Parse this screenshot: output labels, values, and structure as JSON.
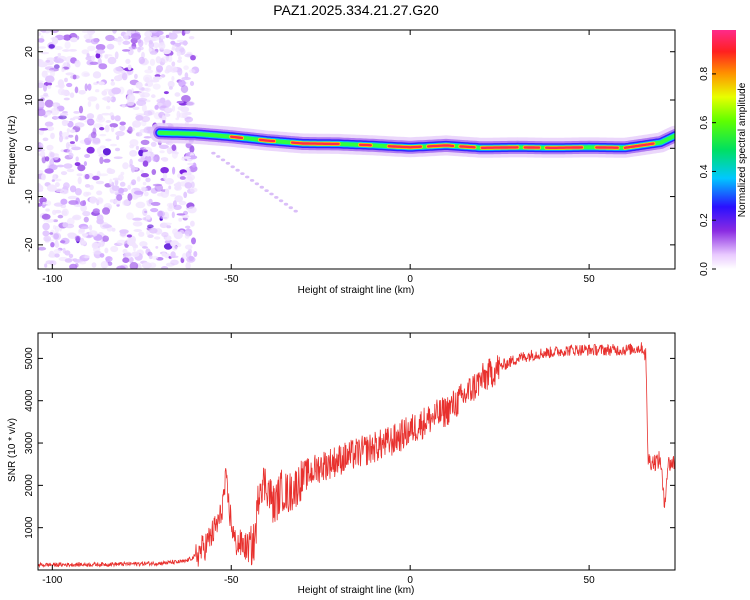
{
  "title": "PAZ1.2025.334.21.27.G20",
  "colors": {
    "snr_line": "#e8312e",
    "ridge_core": "#ff2a4a",
    "noise": "#8a2be2",
    "axis": "#000000"
  },
  "chart_data": [
    {
      "type": "heatmap",
      "name": "spectrogram",
      "xlabel": "Height of straight line (km)",
      "ylabel": "Frequency (Hz)",
      "xlim": [
        -104,
        74
      ],
      "ylim": [
        -25,
        24.5
      ],
      "xticks": [
        "-100",
        "-50",
        "0",
        "50"
      ],
      "xtick_values": [
        -100,
        -50,
        0,
        50
      ],
      "yticks": [
        "-20",
        "-10",
        "0",
        "10",
        "20"
      ],
      "ytick_values": [
        -20,
        -10,
        0,
        10,
        20
      ],
      "noise_region_km": [
        -104,
        -60
      ],
      "ridge": {
        "description": "frequency ridge of the occultation signal",
        "x": [
          -70,
          -60,
          -50,
          -40,
          -30,
          -20,
          -10,
          0,
          10,
          20,
          30,
          40,
          50,
          60,
          70,
          74
        ],
        "freq_hz": [
          3.2,
          3.0,
          2.4,
          1.6,
          1.0,
          0.9,
          0.6,
          0.2,
          0.6,
          0.1,
          0.2,
          0.1,
          0.2,
          0.1,
          1.2,
          2.6
        ]
      },
      "faint_tail": {
        "x": [
          -55,
          -32
        ],
        "freq_hz": [
          -1,
          -13
        ]
      },
      "colorbar": {
        "label": "Normalized spectral amplitude",
        "ticks": [
          "0.0",
          "0.2",
          "0.4",
          "0.6",
          "0.8"
        ],
        "tick_values": [
          0.0,
          0.2,
          0.4,
          0.6,
          0.8
        ],
        "range": [
          0,
          0.98
        ]
      }
    },
    {
      "type": "line",
      "name": "snr",
      "xlabel": "Height of straight line (km)",
      "ylabel": "SNR (10 * v/v)",
      "xlim": [
        -104,
        74
      ],
      "ylim": [
        0,
        5600
      ],
      "xticks": [
        "-100",
        "-50",
        "0",
        "50"
      ],
      "xtick_values": [
        -100,
        -50,
        0,
        50
      ],
      "yticks": [
        "1000",
        "2000",
        "3000",
        "4000",
        "5000"
      ],
      "ytick_values": [
        1000,
        2000,
        3000,
        4000,
        5000
      ],
      "series": [
        {
          "name": "SNR",
          "x": [
            -104,
            -90,
            -80,
            -70,
            -63,
            -60,
            -57,
            -55,
            -53,
            -51.5,
            -50.5,
            -49,
            -47,
            -45,
            -43.5,
            -42,
            -40,
            -38,
            -36,
            -34,
            -32,
            -30,
            -25,
            -20,
            -15,
            -10,
            -5,
            0,
            5,
            10,
            15,
            20,
            25,
            30,
            35,
            40,
            45,
            50,
            55,
            60,
            65,
            65.8,
            66.5,
            68,
            70,
            71,
            72,
            74
          ],
          "y": [
            120,
            130,
            140,
            160,
            200,
            320,
            600,
            900,
            1250,
            2100,
            1400,
            650,
            600,
            500,
            650,
            2100,
            2000,
            1500,
            1900,
            1800,
            1950,
            2200,
            2450,
            2600,
            2750,
            2900,
            3050,
            3300,
            3550,
            3750,
            4100,
            4500,
            4800,
            5000,
            5100,
            5150,
            5200,
            5200,
            5200,
            5200,
            5250,
            5100,
            2600,
            2550,
            2600,
            1500,
            2500,
            2550
          ]
        }
      ]
    }
  ]
}
